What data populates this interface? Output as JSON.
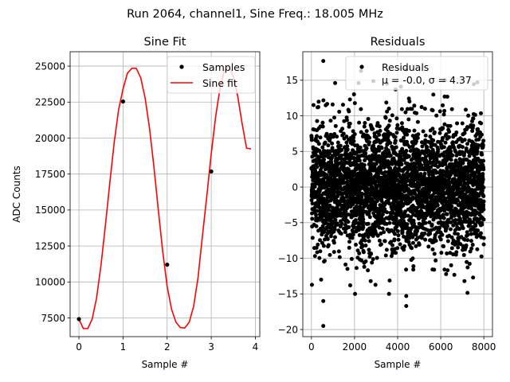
{
  "figure": {
    "suptitle": "Run 2064, channel1, Sine Freq.: 18.005 MHz"
  },
  "chart_data": [
    {
      "type": "line",
      "title": "Sine Fit",
      "xlabel": "Sample #",
      "ylabel": "ADC Counts",
      "xlim": [
        -0.2,
        4.1
      ],
      "ylim": [
        6200,
        26000
      ],
      "xticks": [
        0,
        1,
        2,
        3,
        4
      ],
      "yticks": [
        7500,
        10000,
        12500,
        15000,
        17500,
        20000,
        22500,
        25000
      ],
      "grid": true,
      "legend_position": "top-right",
      "series": [
        {
          "name": "Samples",
          "style": "markers",
          "color": "#000000",
          "x": [
            0,
            1,
            2,
            3
          ],
          "y": [
            7420,
            22540,
            11200,
            17680
          ]
        },
        {
          "name": "Sine fit",
          "style": "line",
          "color": "#ff0000",
          "x": [
            0,
            0.1,
            0.2,
            0.3,
            0.4,
            0.5,
            0.6,
            0.7,
            0.8,
            0.9,
            1.0,
            1.1,
            1.2,
            1.3,
            1.4,
            1.5,
            1.6,
            1.7,
            1.8,
            1.9,
            2.0,
            2.1,
            2.2,
            2.3,
            2.4,
            2.5,
            2.6,
            2.7,
            2.8,
            2.9,
            3.0,
            3.1,
            3.2,
            3.3,
            3.4,
            3.5,
            3.6,
            3.7,
            3.8,
            3.9
          ],
          "y": [
            7420,
            6760,
            6760,
            7420,
            8890,
            11160,
            13930,
            16900,
            19710,
            21980,
            23420,
            24510,
            24850,
            24850,
            24200,
            22800,
            20690,
            18000,
            15000,
            12100,
            9700,
            8100,
            7200,
            6830,
            6800,
            7200,
            8300,
            10300,
            13200,
            16000,
            18920,
            21500,
            23500,
            24700,
            25000,
            24300,
            22900,
            21000,
            19300,
            19250
          ]
        }
      ]
    },
    {
      "type": "scatter",
      "title": "Residuals",
      "xlabel": "Sample #",
      "xlim": [
        -400,
        8400
      ],
      "ylim": [
        -21,
        19
      ],
      "xticks": [
        0,
        2000,
        4000,
        6000,
        8000
      ],
      "yticks": [
        -20,
        -15,
        -10,
        -5,
        0,
        5,
        10,
        15
      ],
      "grid": true,
      "legend_position": "top-right",
      "legend": {
        "label": "Residuals",
        "stats": "μ = -0.0, σ = 4.37"
      },
      "series": [
        {
          "name": "Residuals",
          "color": "#000000",
          "n_points": 8000,
          "mean": 0.0,
          "std": 4.37,
          "outliers": [
            {
              "x": 550,
              "y": 17.7
            },
            {
              "x": 2300,
              "y": 16.3
            },
            {
              "x": 4400,
              "y": 16.5
            },
            {
              "x": 4400,
              "y": -16.7
            },
            {
              "x": 550,
              "y": -19.5
            },
            {
              "x": 3600,
              "y": -15.0
            },
            {
              "x": 4400,
              "y": -15.3
            },
            {
              "x": 550,
              "y": -16.0
            },
            {
              "x": 3500,
              "y": 14.5
            },
            {
              "x": 7700,
              "y": 14.7
            },
            {
              "x": 1100,
              "y": 14.6
            },
            {
              "x": 4150,
              "y": 14.1
            },
            {
              "x": 450,
              "y": -13.0
            },
            {
              "x": 2750,
              "y": -13.2
            },
            {
              "x": 7100,
              "y": -13.2
            },
            {
              "x": 7500,
              "y": -12.7
            },
            {
              "x": 1800,
              "y": -13.8
            }
          ]
        }
      ]
    }
  ]
}
